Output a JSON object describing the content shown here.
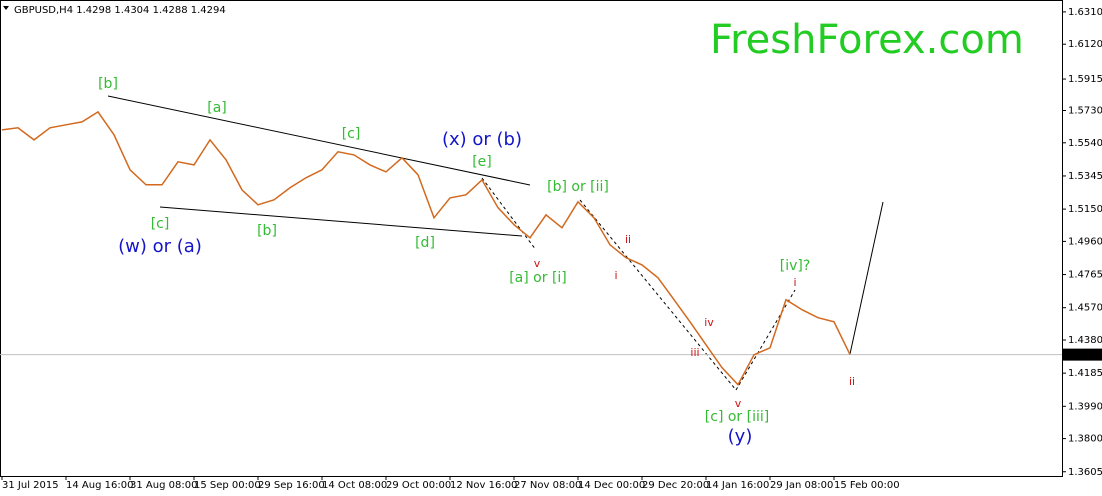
{
  "chart_data": {
    "type": "line",
    "title": "GBPUSD,H4  1.4298 1.4304 1.4288 1.4294",
    "watermark": "FreshForex.com",
    "color": "#d2691e",
    "categories": [
      "31 Jul 2015",
      null,
      null,
      null,
      "14 Aug 16:00",
      null,
      null,
      null,
      "31 Aug 08:00",
      null,
      null,
      null,
      "15 Sep 00:00",
      null,
      null,
      null,
      "29 Sep 16:00",
      null,
      null,
      null,
      "14 Oct 08:00",
      null,
      null,
      null,
      "29 Oct 00:00",
      null,
      null,
      null,
      "12 Nov 16:00",
      null,
      null,
      null,
      "27 Nov 08:00",
      null,
      null,
      null,
      "14 Dec 00:00",
      null,
      null,
      null,
      "29 Dec 20:00",
      null,
      null,
      null,
      "14 Jan 16:00",
      null,
      null,
      null,
      "29 Jan 08:00",
      null,
      null,
      null,
      "15 Feb 00:00",
      null
    ],
    "values": [
      1.5616,
      1.5628,
      1.5557,
      1.5628,
      1.5646,
      1.5663,
      1.5722,
      1.5587,
      1.5381,
      1.5293,
      1.5293,
      1.5428,
      1.541,
      1.5557,
      1.544,
      1.5263,
      1.5175,
      1.5205,
      1.5275,
      1.5334,
      1.5381,
      1.5487,
      1.5469,
      1.541,
      1.5369,
      1.5452,
      1.5352,
      1.5099,
      1.5216,
      1.5234,
      1.5322,
      1.5158,
      1.5058,
      1.4981,
      1.5116,
      1.504,
      1.5193,
      1.5099,
      1.494,
      1.4864,
      1.4822,
      1.4746,
      1.4617,
      1.4487,
      1.4352,
      1.4217,
      1.4117,
      1.4293,
      1.4334,
      1.4617,
      1.4558,
      1.4511,
      1.4487,
      1.4294
    ],
    "ylim": [
      1.358,
      1.638
    ],
    "yticks": [
      {
        "value": 1.631,
        "label": "1.6310"
      },
      {
        "value": 1.612,
        "label": "1.6120"
      },
      1.5915,
      {
        "value": 1.573,
        "label": "1.5730"
      },
      {
        "value": 1.554,
        "label": "1.5540"
      },
      1.5345,
      {
        "value": 1.515,
        "label": "1.5150"
      },
      {
        "value": 1.496,
        "label": "1.4960"
      },
      1.4765,
      {
        "value": 1.457,
        "label": "1.4570"
      },
      {
        "value": 1.438,
        "label": "1.4380"
      },
      1.4185,
      {
        "value": 1.399,
        "label": "1.3990"
      },
      {
        "value": 1.38,
        "label": "1.3800"
      },
      1.3605
    ],
    "current": {
      "value": 1.4294,
      "label": "1.4294"
    },
    "annotations": [
      "[b]",
      "[a]",
      "[c]",
      "(x) or (b)",
      "[e]",
      "[b] or [ii]",
      "[c]",
      "(w) or (a)",
      "[b]",
      "[d]",
      "v",
      "[a] or [i]",
      "ii",
      "i",
      "[iv]?",
      "i",
      "iv",
      "iii",
      "ii",
      "v",
      "[c] or [iii]",
      "(y)"
    ]
  }
}
